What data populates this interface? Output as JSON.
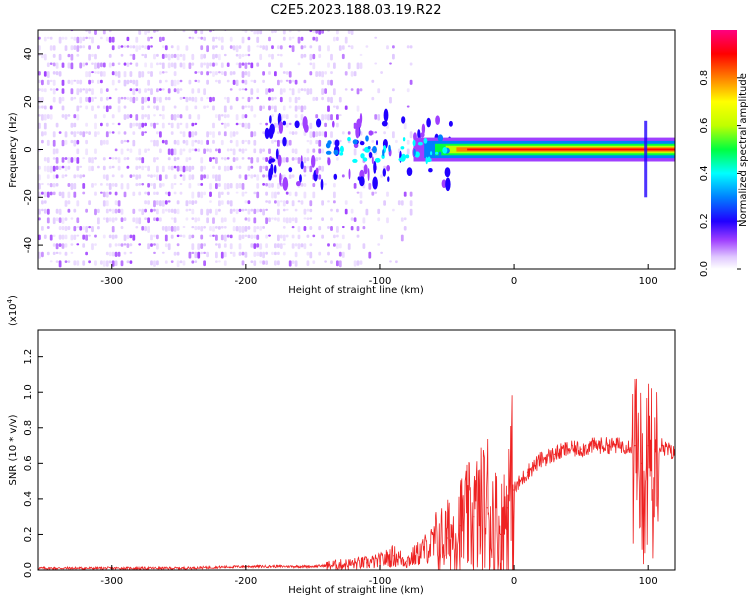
{
  "title": "C2E5.2023.188.03.19.R22",
  "chart_data": [
    {
      "type": "heatmap",
      "title": "C2E5.2023.188.03.19.R22",
      "xlabel": "Height of straight line (km)",
      "ylabel": "Frequency (Hz)",
      "xlim": [
        -355,
        120
      ],
      "ylim": [
        -50,
        50
      ],
      "xticks": [
        -300,
        -200,
        -100,
        0,
        100
      ],
      "yticks": [
        -40,
        -20,
        0,
        20,
        40
      ],
      "colorbar": {
        "label": "Normalized spectral amplitude",
        "range": [
          0.0,
          1.0
        ],
        "ticks": [
          "0.0",
          "0.2",
          "0.4",
          "0.6",
          "0.8"
        ],
        "colors": [
          "#ffffff",
          "#e0c8ff",
          "#a040ff",
          "#2000ff",
          "#0080ff",
          "#00ffff",
          "#00ff40",
          "#c0ff00",
          "#ffff00",
          "#ff8000",
          "#ff0000",
          "#ff0080"
        ]
      },
      "features": [
        {
          "x_range": [
            -355,
            -75
          ],
          "freq_range": [
            -50,
            50
          ],
          "level": "0.1-0.3",
          "note": "broadband purple noise"
        },
        {
          "x_range": [
            -75,
            120
          ],
          "freq_center": 0,
          "level": "0.4-1.0",
          "note": "narrow signal band near 0 Hz"
        },
        {
          "x": 97,
          "freq_range": [
            -20,
            12
          ],
          "level": "0.3",
          "note": "spike near 100 km"
        }
      ]
    },
    {
      "type": "line",
      "xlabel": "Height of straight line (km)",
      "ylabel": "SNR (10 * v/v)",
      "y_multiplier": "(x10",
      "y_multiplier_exp": "4",
      "y_multiplier_close": ")",
      "xlim": [
        -355,
        120
      ],
      "ylim": [
        0.0,
        1.35
      ],
      "xticks": [
        -300,
        -200,
        -100,
        0,
        100
      ],
      "yticks": [
        "0.0",
        "0.2",
        "0.4",
        "0.6",
        "0.8",
        "1.0",
        "1.2"
      ],
      "line_color": "#ee2222",
      "x": [
        -355,
        -300,
        -250,
        -200,
        -150,
        -130,
        -110,
        -100,
        -90,
        -80,
        -70,
        -60,
        -50,
        -40,
        -30,
        -20,
        -10,
        -5,
        0,
        10,
        20,
        30,
        40,
        50,
        60,
        70,
        80,
        90,
        95,
        100,
        105,
        110,
        120
      ],
      "y": [
        0.01,
        0.01,
        0.01,
        0.02,
        0.02,
        0.03,
        0.04,
        0.05,
        0.08,
        0.05,
        0.1,
        0.15,
        0.18,
        0.25,
        0.3,
        0.35,
        0.2,
        0.35,
        0.45,
        0.55,
        0.62,
        0.65,
        0.68,
        0.68,
        0.7,
        0.7,
        0.7,
        0.7,
        0.6,
        0.7,
        0.68,
        0.7,
        0.65
      ]
    }
  ]
}
